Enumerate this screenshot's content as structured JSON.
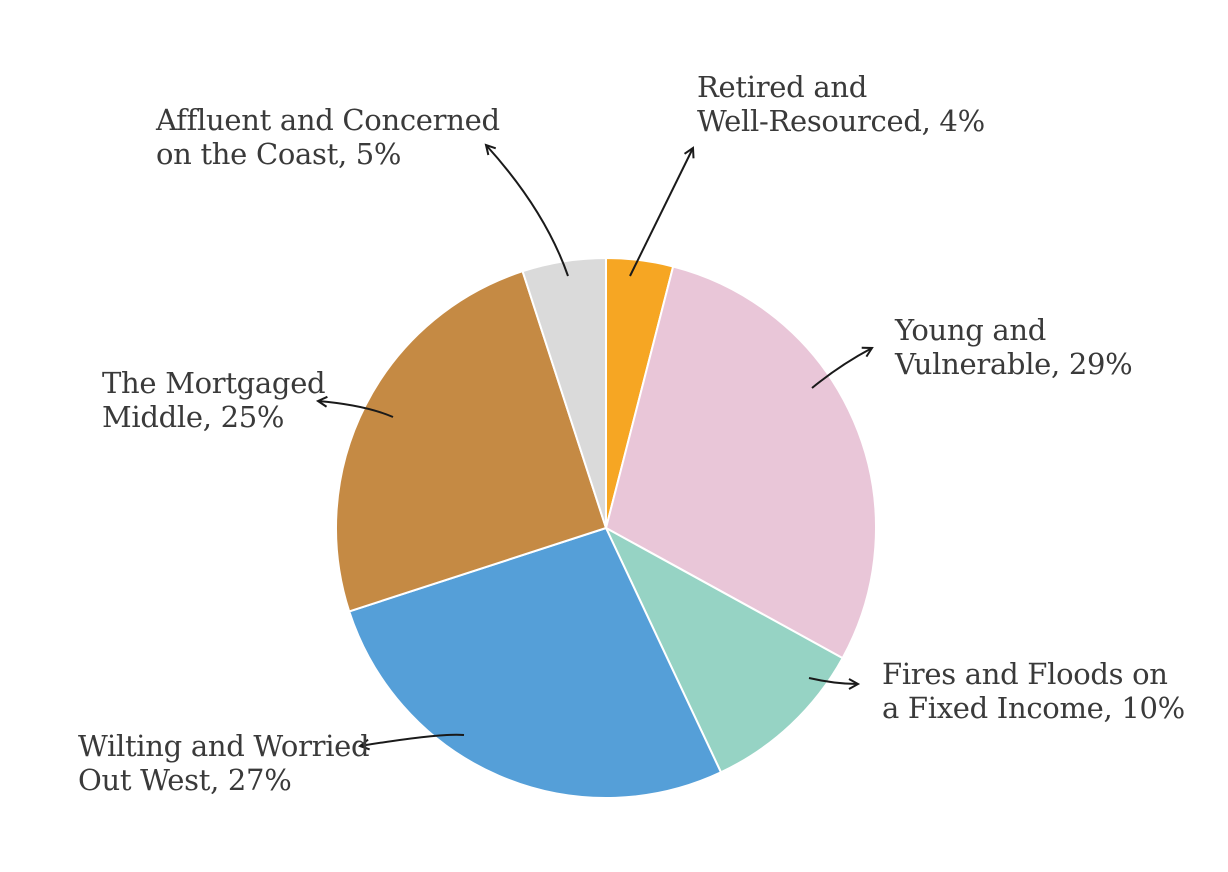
{
  "chart_data": {
    "type": "pie",
    "title": "",
    "start": "12 o'clock",
    "direction": "clockwise",
    "slices": [
      {
        "line1": "Retired and",
        "line2": "Well-Resourced, 4%",
        "name": "Retired and Well-Resourced",
        "value": 4,
        "color": "#F6A623"
      },
      {
        "line1": "Young and",
        "line2": "Vulnerable, 29%",
        "name": "Young and Vulnerable",
        "value": 29,
        "color": "#E9C6D8"
      },
      {
        "line1": "Fires and Floods on",
        "line2": "a Fixed Income, 10%",
        "name": "Fires and Floods on a Fixed Income",
        "value": 10,
        "color": "#96D3C4"
      },
      {
        "line1": "Wilting and Worried",
        "line2": "Out West, 27%",
        "name": "Wilting and Worried Out West",
        "value": 27,
        "color": "#559FD8"
      },
      {
        "line1": "The Mortgaged",
        "line2": "Middle, 25%",
        "name": "The Mortgaged Middle",
        "value": 25,
        "color": "#C58A44"
      },
      {
        "line1": "Affluent and Concerned",
        "line2": "on the Coast, 5%",
        "name": "Affluent and Concerned on the Coast",
        "value": 5,
        "color": "#DADADA"
      }
    ]
  }
}
